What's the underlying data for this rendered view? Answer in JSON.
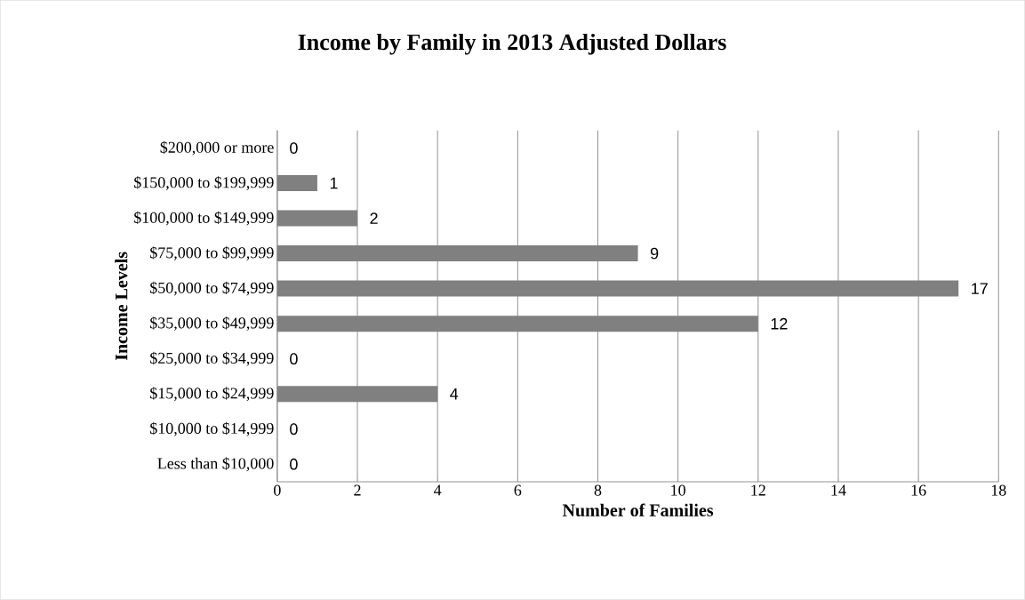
{
  "chart_data": {
    "type": "bar",
    "orientation": "horizontal",
    "title": "Income by Family in 2013 Adjusted Dollars",
    "xlabel": "Number of Families",
    "ylabel": "Income Levels",
    "categories": [
      "$200,000 or more",
      "$150,000 to $199,999",
      "$100,000 to $149,999",
      "$75,000 to $99,999",
      "$50,000 to $74,999",
      "$35,000 to $49,999",
      "$25,000 to $34,999",
      "$15,000 to $24,999",
      "$10,000 to $14,999",
      "Less than $10,000"
    ],
    "values": [
      0,
      1,
      2,
      9,
      17,
      12,
      0,
      4,
      0,
      0
    ],
    "color": "#808080",
    "xlim": [
      0,
      18
    ],
    "xticks": [
      0,
      2,
      4,
      6,
      8,
      10,
      12,
      14,
      16,
      18
    ],
    "grid": "x",
    "data_labels": true
  }
}
